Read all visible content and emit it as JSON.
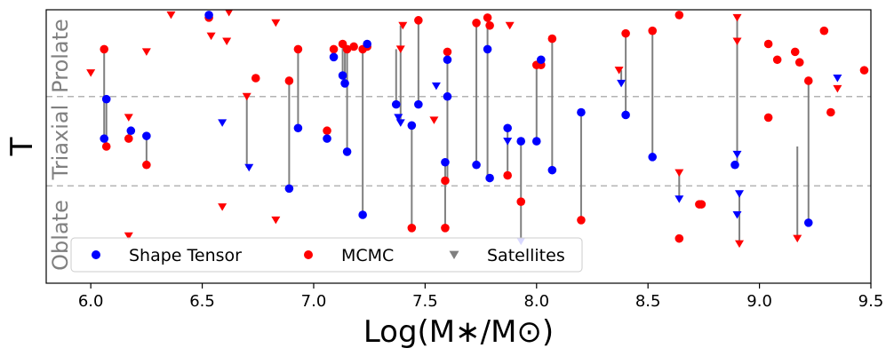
{
  "chart_data": {
    "type": "scatter",
    "xlabel": "Log(M∗/M⊙)",
    "ylabel": "T",
    "xlim": [
      5.8,
      9.5
    ],
    "ylim": [
      -0.02,
      1.02
    ],
    "xticks": [
      6.0,
      6.5,
      7.0,
      7.5,
      8.0,
      8.5,
      9.0,
      9.5
    ],
    "hlines": [
      0.35,
      0.69
    ],
    "region_labels": [
      "Oblate",
      "Triaxial",
      "Prolate"
    ],
    "legend": {
      "placement": "lower-left",
      "entries": [
        "Shape Tensor",
        "MCMC",
        "Satellites"
      ]
    },
    "colors": {
      "shape_tensor": "#0000ff",
      "mcmc": "#ff0000",
      "connector": "#808080",
      "hline": "#b3b3b3",
      "region": "#808080",
      "satellite_legend": "#808080"
    },
    "series": [
      {
        "name": "Shape Tensor",
        "marker": "circle",
        "color": "#0000ff",
        "x": [
          6.06,
          6.07,
          6.18,
          6.25,
          6.53,
          6.89,
          6.93,
          7.06,
          7.09,
          7.13,
          7.14,
          7.15,
          7.22,
          7.24,
          7.37,
          7.44,
          7.47,
          7.59,
          7.6,
          7.6,
          7.73,
          7.78,
          7.79,
          7.87,
          7.93,
          8.0,
          8.02,
          8.07,
          8.2,
          8.4,
          8.52,
          8.89,
          9.22
        ],
        "y": [
          0.53,
          0.68,
          0.56,
          0.54,
          1.0,
          0.34,
          0.57,
          0.53,
          0.84,
          0.77,
          0.74,
          0.48,
          0.24,
          0.89,
          0.66,
          0.58,
          0.66,
          0.44,
          0.83,
          0.69,
          0.43,
          0.87,
          0.38,
          0.57,
          0.52,
          0.52,
          0.83,
          0.41,
          0.63,
          0.62,
          0.46,
          0.43,
          0.21
        ]
      },
      {
        "name": "MCMC",
        "marker": "circle",
        "color": "#ff0000",
        "x": [
          6.06,
          6.07,
          6.17,
          6.25,
          6.53,
          6.74,
          6.89,
          6.93,
          7.06,
          7.09,
          7.13,
          7.15,
          7.18,
          7.22,
          7.24,
          7.44,
          7.47,
          7.59,
          7.59,
          7.6,
          7.73,
          7.78,
          7.79,
          7.87,
          7.93,
          8.0,
          8.02,
          8.07,
          8.2,
          8.4,
          8.52,
          8.64,
          8.64,
          8.73,
          8.74,
          9.04,
          9.04,
          9.08,
          9.16,
          9.18,
          9.22,
          9.29,
          9.32,
          9.47
        ],
        "y": [
          0.87,
          0.5,
          0.53,
          0.43,
          0.99,
          0.76,
          0.75,
          0.87,
          0.56,
          0.87,
          0.89,
          0.87,
          0.88,
          0.87,
          0.88,
          0.19,
          0.98,
          0.19,
          0.37,
          0.86,
          0.97,
          0.99,
          0.96,
          0.39,
          0.29,
          0.81,
          0.81,
          0.91,
          0.22,
          0.93,
          0.94,
          1.0,
          0.15,
          0.28,
          0.28,
          0.89,
          0.61,
          0.83,
          0.86,
          0.82,
          0.75,
          0.94,
          0.63,
          0.79
        ]
      },
      {
        "name": "Satellites",
        "marker": "triangle-down",
        "points": [
          {
            "x": 6.0,
            "y": 0.78,
            "c": "r"
          },
          {
            "x": 6.17,
            "y": 0.16,
            "c": "r"
          },
          {
            "x": 6.17,
            "y": 0.61,
            "c": "r"
          },
          {
            "x": 6.25,
            "y": 0.86,
            "c": "r"
          },
          {
            "x": 6.36,
            "y": 1.0,
            "c": "r"
          },
          {
            "x": 6.54,
            "y": 0.92,
            "c": "r"
          },
          {
            "x": 6.59,
            "y": 0.59,
            "c": "b"
          },
          {
            "x": 6.59,
            "y": 0.27,
            "c": "r"
          },
          {
            "x": 6.61,
            "y": 0.9,
            "c": "r"
          },
          {
            "x": 6.62,
            "y": 1.01,
            "c": "r"
          },
          {
            "x": 6.7,
            "y": 0.69,
            "c": "r"
          },
          {
            "x": 6.71,
            "y": 0.42,
            "c": "b"
          },
          {
            "x": 6.83,
            "y": 0.22,
            "c": "r"
          },
          {
            "x": 6.83,
            "y": 0.97,
            "c": "r"
          },
          {
            "x": 7.38,
            "y": 0.61,
            "c": "b"
          },
          {
            "x": 7.39,
            "y": 0.59,
            "c": "b"
          },
          {
            "x": 7.39,
            "y": 0.87,
            "c": "r"
          },
          {
            "x": 7.4,
            "y": 0.96,
            "c": "r"
          },
          {
            "x": 7.54,
            "y": 0.6,
            "c": "r"
          },
          {
            "x": 7.55,
            "y": 0.73,
            "c": "b"
          },
          {
            "x": 7.87,
            "y": 0.52,
            "c": "b"
          },
          {
            "x": 7.88,
            "y": 0.96,
            "c": "r"
          },
          {
            "x": 7.93,
            "y": 0.14,
            "c": "b"
          },
          {
            "x": 8.37,
            "y": 0.79,
            "c": "r"
          },
          {
            "x": 8.38,
            "y": 0.74,
            "c": "b"
          },
          {
            "x": 8.64,
            "y": 0.4,
            "c": "r"
          },
          {
            "x": 8.64,
            "y": 0.3,
            "c": "b"
          },
          {
            "x": 8.9,
            "y": 0.99,
            "c": "r"
          },
          {
            "x": 8.9,
            "y": 0.9,
            "c": "r"
          },
          {
            "x": 8.9,
            "y": 0.47,
            "c": "b"
          },
          {
            "x": 8.9,
            "y": 0.24,
            "c": "b"
          },
          {
            "x": 8.91,
            "y": 0.32,
            "c": "b"
          },
          {
            "x": 8.91,
            "y": 0.13,
            "c": "r"
          },
          {
            "x": 9.17,
            "y": 0.15,
            "c": "r"
          },
          {
            "x": 9.35,
            "y": 0.76,
            "c": "b"
          },
          {
            "x": 9.35,
            "y": 0.72,
            "c": "r"
          }
        ]
      }
    ],
    "connectors": [
      [
        6.06,
        0.53,
        0.87
      ],
      [
        6.07,
        0.68,
        0.5
      ],
      [
        6.17,
        0.53,
        0.56
      ],
      [
        6.25,
        0.54,
        0.43
      ],
      [
        6.53,
        1.0,
        0.99
      ],
      [
        6.7,
        0.69,
        0.42
      ],
      [
        6.89,
        0.34,
        0.75
      ],
      [
        6.93,
        0.57,
        0.87
      ],
      [
        7.06,
        0.53,
        0.56
      ],
      [
        7.09,
        0.84,
        0.87
      ],
      [
        7.13,
        0.77,
        0.89
      ],
      [
        7.14,
        0.74,
        0.87
      ],
      [
        7.15,
        0.48,
        0.87
      ],
      [
        7.22,
        0.24,
        0.87
      ],
      [
        7.24,
        0.88,
        0.89
      ],
      [
        7.37,
        0.66,
        0.87
      ],
      [
        7.39,
        0.59,
        0.96
      ],
      [
        7.44,
        0.58,
        0.19
      ],
      [
        7.47,
        0.66,
        0.98
      ],
      [
        7.59,
        0.44,
        0.19
      ],
      [
        7.6,
        0.37,
        0.86
      ],
      [
        7.73,
        0.43,
        0.97
      ],
      [
        7.78,
        0.38,
        0.99
      ],
      [
        7.87,
        0.39,
        0.57
      ],
      [
        7.93,
        0.14,
        0.52
      ],
      [
        8.0,
        0.52,
        0.81
      ],
      [
        8.07,
        0.41,
        0.91
      ],
      [
        8.2,
        0.22,
        0.63
      ],
      [
        8.38,
        0.74,
        0.79
      ],
      [
        8.4,
        0.62,
        0.93
      ],
      [
        8.52,
        0.46,
        0.94
      ],
      [
        8.64,
        0.3,
        0.4
      ],
      [
        8.9,
        0.43,
        0.99
      ],
      [
        8.91,
        0.13,
        0.32
      ],
      [
        9.17,
        0.15,
        0.5
      ],
      [
        9.22,
        0.21,
        0.75
      ]
    ]
  }
}
